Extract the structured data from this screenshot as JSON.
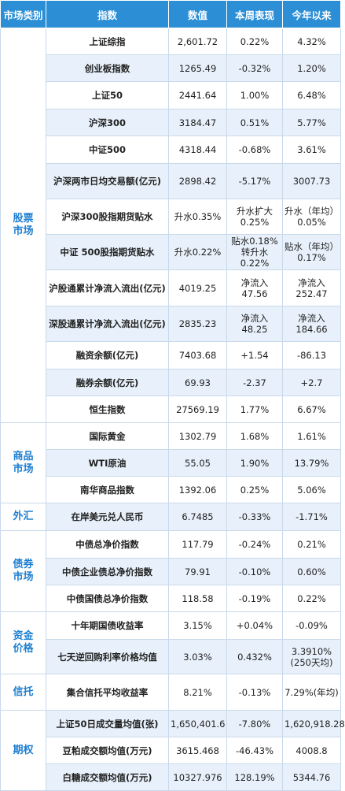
{
  "headers": [
    "市场类别",
    "指数",
    "数值",
    "本周表现",
    "今年以来"
  ],
  "categories": [
    "股票市场",
    "商品市场",
    "外汇",
    "债券市场",
    "资金价格",
    "信托",
    "期权"
  ],
  "rows": [
    [
      "上证综指",
      "2,601.72",
      "0.22%",
      "4.32%"
    ],
    [
      "创业板指数",
      "1265.49",
      "-0.32%",
      "1.20%"
    ],
    [
      "上证50",
      "2441.64",
      "1.00%",
      "6.48%"
    ],
    [
      "沪深300",
      "3184.47",
      "0.51%",
      "5.77%"
    ],
    [
      "中证500",
      "4318.44",
      "-0.68%",
      "3.61%"
    ],
    [
      "沪深两市日均交易额(亿元)",
      "2898.42",
      "-5.17%",
      "3007.73"
    ],
    [
      "沪深300股指期货贴水",
      "升水0.35%",
      "升水扩大0.25%",
      "升水（年均）0.05%"
    ],
    [
      "中证 500股指期货贴水",
      "升水0.22%",
      "贴水0.18%转升水0.22%",
      "贴水（年均）0.17%"
    ],
    [
      "沪股通累计净流入流出(亿元)",
      "4019.25",
      "净流入47.56",
      "净流入252.47"
    ],
    [
      "深股通累计净流入流出(亿元)",
      "2835.23",
      "净流入48.25",
      "净流入184.66"
    ],
    [
      "融资余额(亿元)",
      "7403.68",
      "+1.54",
      "-86.13"
    ],
    [
      "融券余额(亿元)",
      "69.93",
      "-2.37",
      "+2.7"
    ],
    [
      "恒生指数",
      "27569.19",
      "1.77%",
      "6.67%"
    ],
    [
      "国际黄金",
      "1302.79",
      "1.68%",
      "1.61%"
    ],
    [
      "WTI原油",
      "55.05",
      "1.90%",
      "13.79%"
    ],
    [
      "南华商品指数",
      "1392.06",
      "0.25%",
      "5.06%"
    ],
    [
      "在岸美元兑人民币",
      "6.7485",
      "-0.33%",
      "-1.71%"
    ],
    [
      "中债总净价指数",
      "117.79",
      "-0.24%",
      "0.21%"
    ],
    [
      "中债企业债总净价指数",
      "79.91",
      "-0.10%",
      "0.60%"
    ],
    [
      "中债国债总净价指数",
      "118.58",
      "-0.19%",
      "0.22%"
    ],
    [
      "十年期国债收益率",
      "3.15%",
      "+0.04%",
      "-0.09%"
    ],
    [
      "七天逆回购利率价格均值",
      "3.03%",
      "0.432%",
      "3.3910%(250天均)"
    ],
    [
      "集合信托平均收益率",
      "8.21%",
      "-0.13%",
      "7.29%(年均)"
    ],
    [
      "上证50日成交量均值(张)",
      "1,650,401.6",
      "-7.80%",
      "1,620,918.28"
    ],
    [
      "豆粕成交额均值(万元)",
      "3615.468",
      "-46.43%",
      "4008.8"
    ],
    [
      "白糖成交额均值(万元)",
      "10327.976",
      "128.19%",
      "5344.76"
    ]
  ]
}
